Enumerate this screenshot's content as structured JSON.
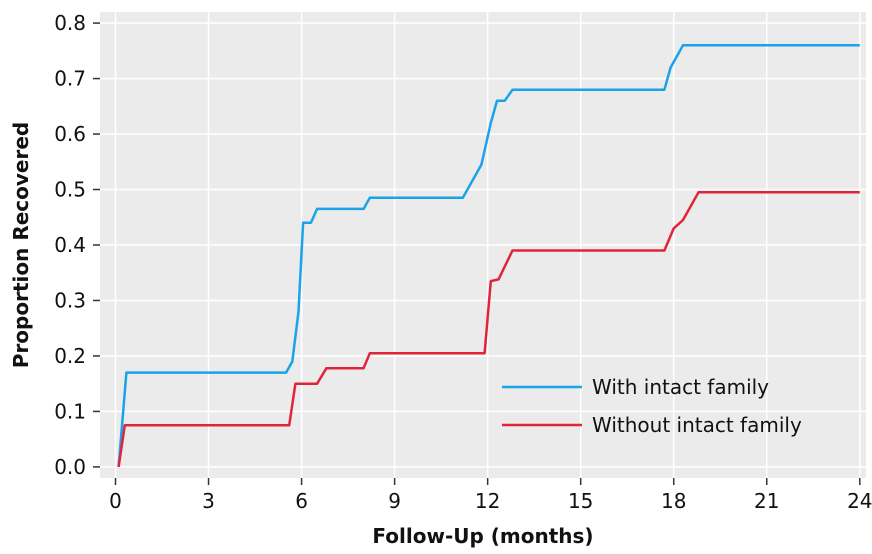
{
  "chart_data": {
    "type": "line",
    "title": "",
    "xlabel": "Follow-Up (months)",
    "ylabel": "Proportion Recovered",
    "xlim": [
      -0.5,
      24.2
    ],
    "ylim": [
      -0.02,
      0.82
    ],
    "x_ticks": [
      0,
      3,
      6,
      9,
      12,
      15,
      18,
      21,
      24
    ],
    "y_ticks": [
      0.0,
      0.1,
      0.2,
      0.3,
      0.4,
      0.5,
      0.6,
      0.7,
      0.8
    ],
    "x_tick_labels": [
      "0",
      "3",
      "6",
      "9",
      "12",
      "15",
      "18",
      "21",
      "24"
    ],
    "y_tick_labels": [
      "0.0",
      "0.1",
      "0.2",
      "0.3",
      "0.4",
      "0.5",
      "0.6",
      "0.7",
      "0.8"
    ],
    "grid": true,
    "legend_position": "bottom-right",
    "series": [
      {
        "name": "With intact family",
        "color": "#1aa3e8",
        "points": [
          [
            0.1,
            0.0
          ],
          [
            0.35,
            0.17
          ],
          [
            5.5,
            0.17
          ],
          [
            5.7,
            0.19
          ],
          [
            5.9,
            0.28
          ],
          [
            6.05,
            0.44
          ],
          [
            6.3,
            0.44
          ],
          [
            6.5,
            0.465
          ],
          [
            8.0,
            0.465
          ],
          [
            8.2,
            0.485
          ],
          [
            11.2,
            0.485
          ],
          [
            11.8,
            0.545
          ],
          [
            12.1,
            0.62
          ],
          [
            12.3,
            0.66
          ],
          [
            12.55,
            0.66
          ],
          [
            12.8,
            0.68
          ],
          [
            17.7,
            0.68
          ],
          [
            17.9,
            0.72
          ],
          [
            18.3,
            0.76
          ],
          [
            24.0,
            0.76
          ]
        ]
      },
      {
        "name": "Without intact family",
        "color": "#e0253a",
        "points": [
          [
            0.1,
            0.0
          ],
          [
            0.3,
            0.075
          ],
          [
            5.6,
            0.075
          ],
          [
            5.8,
            0.15
          ],
          [
            6.5,
            0.15
          ],
          [
            6.8,
            0.178
          ],
          [
            8.0,
            0.178
          ],
          [
            8.2,
            0.205
          ],
          [
            11.9,
            0.205
          ],
          [
            12.1,
            0.335
          ],
          [
            12.35,
            0.338
          ],
          [
            12.8,
            0.39
          ],
          [
            17.7,
            0.39
          ],
          [
            18.0,
            0.43
          ],
          [
            18.3,
            0.445
          ],
          [
            18.8,
            0.495
          ],
          [
            24.0,
            0.495
          ]
        ]
      }
    ]
  }
}
